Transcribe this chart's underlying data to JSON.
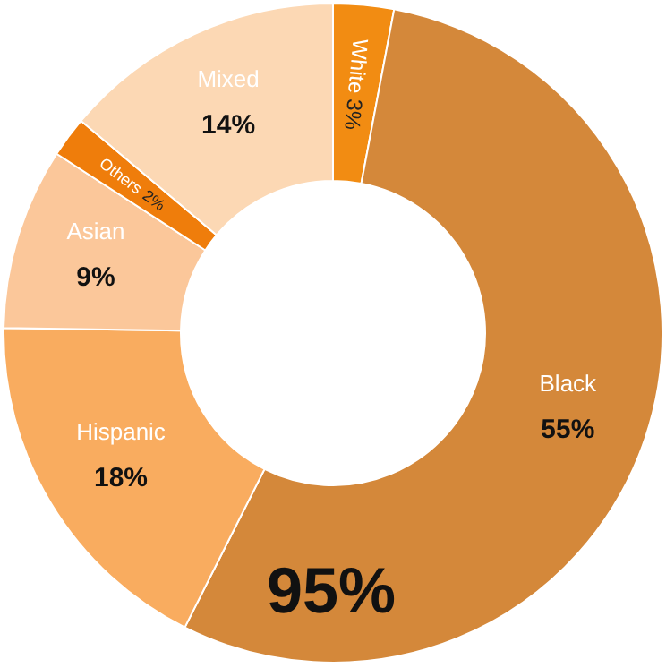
{
  "chart_data": {
    "type": "donut",
    "categories": [
      "White",
      "Black",
      "Hispanic",
      "Asian",
      "Others",
      "Mixed"
    ],
    "values": [
      3,
      55,
      18,
      9,
      2,
      14
    ],
    "value_labels": [
      "3%",
      "55%",
      "18%",
      "9%",
      "2%",
      "14%"
    ],
    "colors": [
      "#f28c12",
      "#d4883a",
      "#f9ac5f",
      "#fbc79a",
      "#ef7d0b",
      "#fcd8b4"
    ],
    "annotations": [
      "95%"
    ],
    "legend": false
  }
}
